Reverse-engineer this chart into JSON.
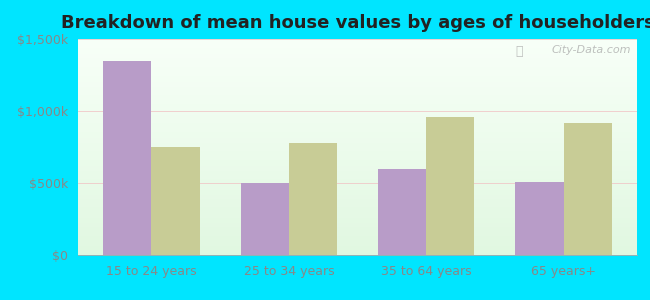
{
  "title": "Breakdown of mean house values by ages of householders",
  "categories": [
    "15 to 24 years",
    "25 to 34 years",
    "35 to 64 years",
    "65 years+"
  ],
  "fontana_values": [
    1350000,
    500000,
    600000,
    510000
  ],
  "california_values": [
    750000,
    775000,
    960000,
    920000
  ],
  "fontana_color": "#b89cc8",
  "california_color": "#c8cc96",
  "ylim": [
    0,
    1500000
  ],
  "yticks": [
    0,
    500000,
    1000000,
    1500000
  ],
  "ytick_labels": [
    "$0",
    "$500k",
    "$1,000k",
    "$1,500k"
  ],
  "background_outer": "#00e5ff",
  "title_fontsize": 13,
  "legend_fontsize": 10,
  "tick_fontsize": 9,
  "bar_width": 0.35,
  "watermark": "City-Data.com",
  "tick_color": "#888888",
  "grid_color": "#e8ffe8"
}
